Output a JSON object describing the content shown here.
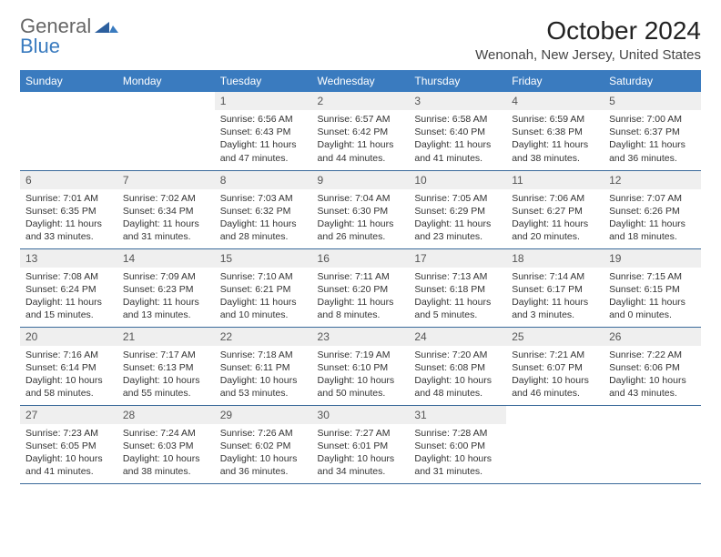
{
  "logo": {
    "general": "General",
    "blue": "Blue"
  },
  "title": "October 2024",
  "location": "Wenonah, New Jersey, United States",
  "colors": {
    "header_bg": "#3a7bbf",
    "header_text": "#ffffff",
    "daynum_bg": "#efefef",
    "border": "#3a6a9a"
  },
  "day_names": [
    "Sunday",
    "Monday",
    "Tuesday",
    "Wednesday",
    "Thursday",
    "Friday",
    "Saturday"
  ],
  "weeks": [
    [
      null,
      null,
      {
        "n": "1",
        "sr": "Sunrise: 6:56 AM",
        "ss": "Sunset: 6:43 PM",
        "dl": "Daylight: 11 hours and 47 minutes."
      },
      {
        "n": "2",
        "sr": "Sunrise: 6:57 AM",
        "ss": "Sunset: 6:42 PM",
        "dl": "Daylight: 11 hours and 44 minutes."
      },
      {
        "n": "3",
        "sr": "Sunrise: 6:58 AM",
        "ss": "Sunset: 6:40 PM",
        "dl": "Daylight: 11 hours and 41 minutes."
      },
      {
        "n": "4",
        "sr": "Sunrise: 6:59 AM",
        "ss": "Sunset: 6:38 PM",
        "dl": "Daylight: 11 hours and 38 minutes."
      },
      {
        "n": "5",
        "sr": "Sunrise: 7:00 AM",
        "ss": "Sunset: 6:37 PM",
        "dl": "Daylight: 11 hours and 36 minutes."
      }
    ],
    [
      {
        "n": "6",
        "sr": "Sunrise: 7:01 AM",
        "ss": "Sunset: 6:35 PM",
        "dl": "Daylight: 11 hours and 33 minutes."
      },
      {
        "n": "7",
        "sr": "Sunrise: 7:02 AM",
        "ss": "Sunset: 6:34 PM",
        "dl": "Daylight: 11 hours and 31 minutes."
      },
      {
        "n": "8",
        "sr": "Sunrise: 7:03 AM",
        "ss": "Sunset: 6:32 PM",
        "dl": "Daylight: 11 hours and 28 minutes."
      },
      {
        "n": "9",
        "sr": "Sunrise: 7:04 AM",
        "ss": "Sunset: 6:30 PM",
        "dl": "Daylight: 11 hours and 26 minutes."
      },
      {
        "n": "10",
        "sr": "Sunrise: 7:05 AM",
        "ss": "Sunset: 6:29 PM",
        "dl": "Daylight: 11 hours and 23 minutes."
      },
      {
        "n": "11",
        "sr": "Sunrise: 7:06 AM",
        "ss": "Sunset: 6:27 PM",
        "dl": "Daylight: 11 hours and 20 minutes."
      },
      {
        "n": "12",
        "sr": "Sunrise: 7:07 AM",
        "ss": "Sunset: 6:26 PM",
        "dl": "Daylight: 11 hours and 18 minutes."
      }
    ],
    [
      {
        "n": "13",
        "sr": "Sunrise: 7:08 AM",
        "ss": "Sunset: 6:24 PM",
        "dl": "Daylight: 11 hours and 15 minutes."
      },
      {
        "n": "14",
        "sr": "Sunrise: 7:09 AM",
        "ss": "Sunset: 6:23 PM",
        "dl": "Daylight: 11 hours and 13 minutes."
      },
      {
        "n": "15",
        "sr": "Sunrise: 7:10 AM",
        "ss": "Sunset: 6:21 PM",
        "dl": "Daylight: 11 hours and 10 minutes."
      },
      {
        "n": "16",
        "sr": "Sunrise: 7:11 AM",
        "ss": "Sunset: 6:20 PM",
        "dl": "Daylight: 11 hours and 8 minutes."
      },
      {
        "n": "17",
        "sr": "Sunrise: 7:13 AM",
        "ss": "Sunset: 6:18 PM",
        "dl": "Daylight: 11 hours and 5 minutes."
      },
      {
        "n": "18",
        "sr": "Sunrise: 7:14 AM",
        "ss": "Sunset: 6:17 PM",
        "dl": "Daylight: 11 hours and 3 minutes."
      },
      {
        "n": "19",
        "sr": "Sunrise: 7:15 AM",
        "ss": "Sunset: 6:15 PM",
        "dl": "Daylight: 11 hours and 0 minutes."
      }
    ],
    [
      {
        "n": "20",
        "sr": "Sunrise: 7:16 AM",
        "ss": "Sunset: 6:14 PM",
        "dl": "Daylight: 10 hours and 58 minutes."
      },
      {
        "n": "21",
        "sr": "Sunrise: 7:17 AM",
        "ss": "Sunset: 6:13 PM",
        "dl": "Daylight: 10 hours and 55 minutes."
      },
      {
        "n": "22",
        "sr": "Sunrise: 7:18 AM",
        "ss": "Sunset: 6:11 PM",
        "dl": "Daylight: 10 hours and 53 minutes."
      },
      {
        "n": "23",
        "sr": "Sunrise: 7:19 AM",
        "ss": "Sunset: 6:10 PM",
        "dl": "Daylight: 10 hours and 50 minutes."
      },
      {
        "n": "24",
        "sr": "Sunrise: 7:20 AM",
        "ss": "Sunset: 6:08 PM",
        "dl": "Daylight: 10 hours and 48 minutes."
      },
      {
        "n": "25",
        "sr": "Sunrise: 7:21 AM",
        "ss": "Sunset: 6:07 PM",
        "dl": "Daylight: 10 hours and 46 minutes."
      },
      {
        "n": "26",
        "sr": "Sunrise: 7:22 AM",
        "ss": "Sunset: 6:06 PM",
        "dl": "Daylight: 10 hours and 43 minutes."
      }
    ],
    [
      {
        "n": "27",
        "sr": "Sunrise: 7:23 AM",
        "ss": "Sunset: 6:05 PM",
        "dl": "Daylight: 10 hours and 41 minutes."
      },
      {
        "n": "28",
        "sr": "Sunrise: 7:24 AM",
        "ss": "Sunset: 6:03 PM",
        "dl": "Daylight: 10 hours and 38 minutes."
      },
      {
        "n": "29",
        "sr": "Sunrise: 7:26 AM",
        "ss": "Sunset: 6:02 PM",
        "dl": "Daylight: 10 hours and 36 minutes."
      },
      {
        "n": "30",
        "sr": "Sunrise: 7:27 AM",
        "ss": "Sunset: 6:01 PM",
        "dl": "Daylight: 10 hours and 34 minutes."
      },
      {
        "n": "31",
        "sr": "Sunrise: 7:28 AM",
        "ss": "Sunset: 6:00 PM",
        "dl": "Daylight: 10 hours and 31 minutes."
      },
      null,
      null
    ]
  ]
}
